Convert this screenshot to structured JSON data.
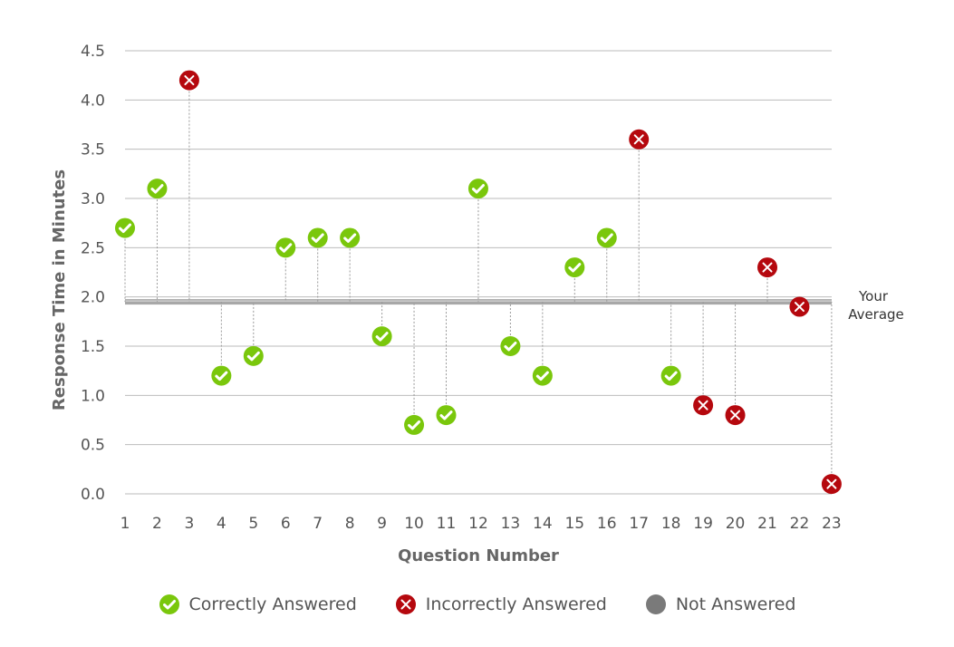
{
  "chart_data": {
    "type": "scatter",
    "title": "",
    "xlabel": "Question Number",
    "ylabel": "Response Time in Minutes",
    "ylim": [
      0,
      4.5
    ],
    "yticks": [
      "0.0",
      "0.5",
      "1.0",
      "1.5",
      "2.0",
      "2.5",
      "3.0",
      "3.5",
      "4.0",
      "4.5"
    ],
    "average": 1.95,
    "average_label": [
      "Your",
      "Average"
    ],
    "points": [
      {
        "q": "1",
        "value": 2.7,
        "status": "correct"
      },
      {
        "q": "2",
        "value": 3.1,
        "status": "correct"
      },
      {
        "q": "3",
        "value": 4.2,
        "status": "incorrect"
      },
      {
        "q": "4",
        "value": 1.2,
        "status": "correct"
      },
      {
        "q": "5",
        "value": 1.4,
        "status": "correct"
      },
      {
        "q": "6",
        "value": 2.5,
        "status": "correct"
      },
      {
        "q": "7",
        "value": 2.6,
        "status": "correct"
      },
      {
        "q": "8",
        "value": 2.6,
        "status": "correct"
      },
      {
        "q": "9",
        "value": 1.6,
        "status": "correct"
      },
      {
        "q": "10",
        "value": 0.7,
        "status": "correct"
      },
      {
        "q": "11",
        "value": 0.8,
        "status": "correct"
      },
      {
        "q": "12",
        "value": 3.1,
        "status": "correct"
      },
      {
        "q": "13",
        "value": 1.5,
        "status": "correct"
      },
      {
        "q": "14",
        "value": 1.2,
        "status": "correct"
      },
      {
        "q": "15",
        "value": 2.3,
        "status": "correct"
      },
      {
        "q": "16",
        "value": 2.6,
        "status": "correct"
      },
      {
        "q": "17",
        "value": 3.6,
        "status": "incorrect"
      },
      {
        "q": "18",
        "value": 1.2,
        "status": "correct"
      },
      {
        "q": "19",
        "value": 0.9,
        "status": "incorrect"
      },
      {
        "q": "20",
        "value": 0.8,
        "status": "incorrect"
      },
      {
        "q": "21",
        "value": 2.3,
        "status": "incorrect"
      },
      {
        "q": "22",
        "value": 1.9,
        "status": "incorrect"
      },
      {
        "q": "23",
        "value": 0.1,
        "status": "incorrect"
      }
    ],
    "legend": [
      {
        "key": "correct",
        "label": "Correctly Answered"
      },
      {
        "key": "incorrect",
        "label": "Incorrectly Answered"
      },
      {
        "key": "unanswered",
        "label": "Not Answered"
      }
    ]
  },
  "colors": {
    "correct": "#7ac70c",
    "incorrect": "#b5080e",
    "unanswered": "#7a7a7a",
    "grid": "#bbbbbb",
    "average_band": "#a8a8a8"
  },
  "icons": {
    "correct": "check-icon",
    "incorrect": "x-icon",
    "unanswered": "circle-icon"
  }
}
